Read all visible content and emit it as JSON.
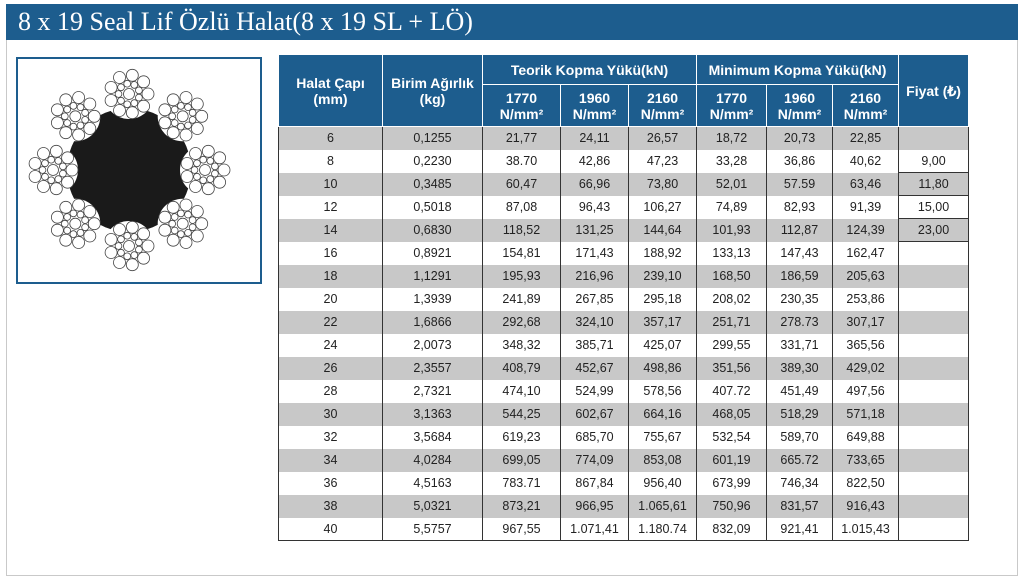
{
  "title": "8 x 19 Seal Lif Özlü Halat(8 x 19 SL + LÖ)",
  "table": {
    "headers": {
      "diameter": "Halat Çapı (mm)",
      "weight": "Birim Ağırlık (kg)",
      "theoretical_group": "Teorik Kopma Yükü(kN)",
      "minimum_group": "Minimum Kopma Yükü(kN)",
      "price": "Fiyat (₺)",
      "grade_values": [
        "1770",
        "1960",
        "2160",
        "1770",
        "1960",
        "2160"
      ],
      "grade_unit": "N/mm²"
    },
    "rows": [
      {
        "d": "6",
        "w": "0,1255",
        "t1": "21,77",
        "t2": "24,11",
        "t3": "26,57",
        "m1": "18,72",
        "m2": "20,73",
        "m3": "22,85",
        "p": ""
      },
      {
        "d": "8",
        "w": "0,2230",
        "t1": "38.70",
        "t2": "42,86",
        "t3": "47,23",
        "m1": "33,28",
        "m2": "36,86",
        "m3": "40,62",
        "p": "9,00"
      },
      {
        "d": "10",
        "w": "0,3485",
        "t1": "60,47",
        "t2": "66,96",
        "t3": "73,80",
        "m1": "52,01",
        "m2": "57.59",
        "m3": "63,46",
        "p": "11,80"
      },
      {
        "d": "12",
        "w": "0,5018",
        "t1": "87,08",
        "t2": "96,43",
        "t3": "106,27",
        "m1": "74,89",
        "m2": "82,93",
        "m3": "91,39",
        "p": "15,00"
      },
      {
        "d": "14",
        "w": "0,6830",
        "t1": "118,52",
        "t2": "131,25",
        "t3": "144,64",
        "m1": "101,93",
        "m2": "112,87",
        "m3": "124,39",
        "p": "23,00"
      },
      {
        "d": "16",
        "w": "0,8921",
        "t1": "154,81",
        "t2": "171,43",
        "t3": "188,92",
        "m1": "133,13",
        "m2": "147,43",
        "m3": "162,47",
        "p": ""
      },
      {
        "d": "18",
        "w": "1,1291",
        "t1": "195,93",
        "t2": "216,96",
        "t3": "239,10",
        "m1": "168,50",
        "m2": "186,59",
        "m3": "205,63",
        "p": ""
      },
      {
        "d": "20",
        "w": "1,3939",
        "t1": "241,89",
        "t2": "267,85",
        "t3": "295,18",
        "m1": "208,02",
        "m2": "230,35",
        "m3": "253,86",
        "p": ""
      },
      {
        "d": "22",
        "w": "1,6866",
        "t1": "292,68",
        "t2": "324,10",
        "t3": "357,17",
        "m1": "251,71",
        "m2": "278.73",
        "m3": "307,17",
        "p": ""
      },
      {
        "d": "24",
        "w": "2,0073",
        "t1": "348,32",
        "t2": "385,71",
        "t3": "425,07",
        "m1": "299,55",
        "m2": "331,71",
        "m3": "365,56",
        "p": ""
      },
      {
        "d": "26",
        "w": "2,3557",
        "t1": "408,79",
        "t2": "452,67",
        "t3": "498,86",
        "m1": "351,56",
        "m2": "389,30",
        "m3": "429,02",
        "p": ""
      },
      {
        "d": "28",
        "w": "2,7321",
        "t1": "474,10",
        "t2": "524,99",
        "t3": "578,56",
        "m1": "407.72",
        "m2": "451,49",
        "m3": "497,56",
        "p": ""
      },
      {
        "d": "30",
        "w": "3,1363",
        "t1": "544,25",
        "t2": "602,67",
        "t3": "664,16",
        "m1": "468,05",
        "m2": "518,29",
        "m3": "571,18",
        "p": ""
      },
      {
        "d": "32",
        "w": "3,5684",
        "t1": "619,23",
        "t2": "685,70",
        "t3": "755,67",
        "m1": "532,54",
        "m2": "589,70",
        "m3": "649,88",
        "p": ""
      },
      {
        "d": "34",
        "w": "4,0284",
        "t1": "699,05",
        "t2": "774,09",
        "t3": "853,08",
        "m1": "601,19",
        "m2": "665.72",
        "m3": "733,65",
        "p": ""
      },
      {
        "d": "36",
        "w": "4,5163",
        "t1": "783.71",
        "t2": "867,84",
        "t3": "956,40",
        "m1": "673,99",
        "m2": "746,34",
        "m3": "822,50",
        "p": ""
      },
      {
        "d": "38",
        "w": "5,0321",
        "t1": "873,21",
        "t2": "966,95",
        "t3": "1.065,61",
        "m1": "750,96",
        "m2": "831,57",
        "m3": "916,43",
        "p": ""
      },
      {
        "d": "40",
        "w": "5,5757",
        "t1": "967,55",
        "t2": "1.071,41",
        "t3": "1.180.74",
        "m1": "832,09",
        "m2": "921,41",
        "m3": "1.015,43",
        "p": ""
      }
    ]
  },
  "colors": {
    "header_blue": "#1d5d8e",
    "row_gray": "#c8c8c8",
    "row_white": "#ffffff",
    "rope_core": "#1a1a1a"
  }
}
